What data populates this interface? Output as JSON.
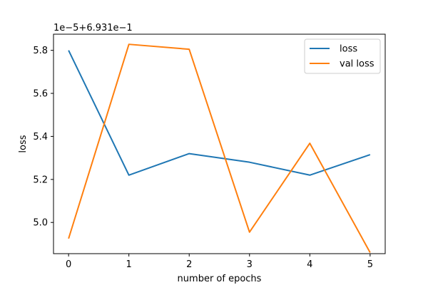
{
  "chart_data": {
    "type": "line",
    "title": "",
    "xlabel": "number of epochs",
    "ylabel": "loss",
    "offset_text": "1e−5+6.931e−1",
    "x": [
      0,
      1,
      2,
      3,
      4,
      5
    ],
    "xlim": [
      -0.25,
      5.25
    ],
    "ylim": [
      4.855,
      5.875
    ],
    "xticks": [
      0,
      1,
      2,
      3,
      4,
      5
    ],
    "xtick_labels": [
      "0",
      "1",
      "2",
      "3",
      "4",
      "5"
    ],
    "yticks": [
      5.0,
      5.2,
      5.4,
      5.6,
      5.8
    ],
    "ytick_labels": [
      "5.0",
      "5.2",
      "5.4",
      "5.6",
      "5.8"
    ],
    "grid": false,
    "legend_position": "top-right",
    "series": [
      {
        "name": "loss",
        "color": "#1f77b4",
        "values": [
          5.8,
          5.22,
          5.32,
          5.28,
          5.22,
          5.315
        ]
      },
      {
        "name": "val loss",
        "color": "#ff7f0e",
        "values": [
          4.925,
          5.828,
          5.805,
          4.955,
          5.368,
          4.86
        ]
      }
    ]
  }
}
